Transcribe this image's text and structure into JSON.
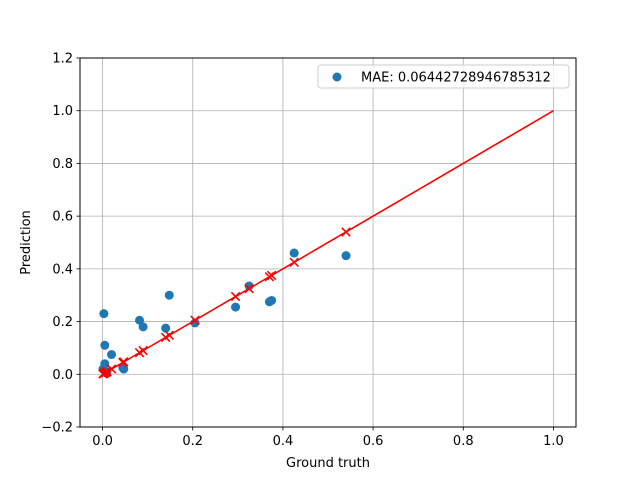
{
  "chart_data": {
    "type": "scatter",
    "xlabel": "Ground truth",
    "ylabel": "Prediction",
    "xlim": [
      -0.05,
      1.05
    ],
    "ylim": [
      -0.2,
      1.2
    ],
    "x_ticks": [
      0.0,
      0.2,
      0.4,
      0.6,
      0.8,
      1.0
    ],
    "x_tick_labels": [
      "0.0",
      "0.2",
      "0.4",
      "0.6",
      "0.8",
      "1.0"
    ],
    "y_ticks": [
      -0.2,
      0.0,
      0.2,
      0.4,
      0.6,
      0.8,
      1.0,
      1.2
    ],
    "y_tick_labels": [
      "−0.2",
      "0.0",
      "0.2",
      "0.4",
      "0.6",
      "0.8",
      "1.0",
      "1.2"
    ],
    "grid": true,
    "legend_position": "top-right",
    "series": [
      {
        "name": "MAE: 0.06442728946785312",
        "kind": "scatter",
        "marker": "circle",
        "color": "#1f77b4",
        "points": [
          [
            0.001,
            0.02
          ],
          [
            0.003,
            0.23
          ],
          [
            0.005,
            0.11
          ],
          [
            0.005,
            0.04
          ],
          [
            0.008,
            0.005
          ],
          [
            0.01,
            0.01
          ],
          [
            0.02,
            0.075
          ],
          [
            0.045,
            0.025
          ],
          [
            0.047,
            0.02
          ],
          [
            0.082,
            0.205
          ],
          [
            0.09,
            0.18
          ],
          [
            0.14,
            0.175
          ],
          [
            0.148,
            0.3
          ],
          [
            0.205,
            0.195
          ],
          [
            0.295,
            0.255
          ],
          [
            0.325,
            0.335
          ],
          [
            0.37,
            0.275
          ],
          [
            0.375,
            0.28
          ],
          [
            0.425,
            0.46
          ],
          [
            0.54,
            0.45
          ]
        ]
      },
      {
        "kind": "scatter",
        "marker": "x",
        "color": "#ff0000",
        "points": [
          [
            0.001,
            0.001
          ],
          [
            0.003,
            0.003
          ],
          [
            0.005,
            0.005
          ],
          [
            0.008,
            0.008
          ],
          [
            0.01,
            0.01
          ],
          [
            0.02,
            0.02
          ],
          [
            0.045,
            0.045
          ],
          [
            0.047,
            0.047
          ],
          [
            0.082,
            0.082
          ],
          [
            0.09,
            0.09
          ],
          [
            0.14,
            0.14
          ],
          [
            0.148,
            0.148
          ],
          [
            0.205,
            0.205
          ],
          [
            0.295,
            0.295
          ],
          [
            0.325,
            0.325
          ],
          [
            0.37,
            0.37
          ],
          [
            0.375,
            0.375
          ],
          [
            0.425,
            0.425
          ],
          [
            0.54,
            0.54
          ]
        ]
      },
      {
        "kind": "line",
        "color": "#ff0000",
        "points": [
          [
            0.0,
            0.0
          ],
          [
            1.0,
            1.0
          ]
        ]
      }
    ]
  }
}
